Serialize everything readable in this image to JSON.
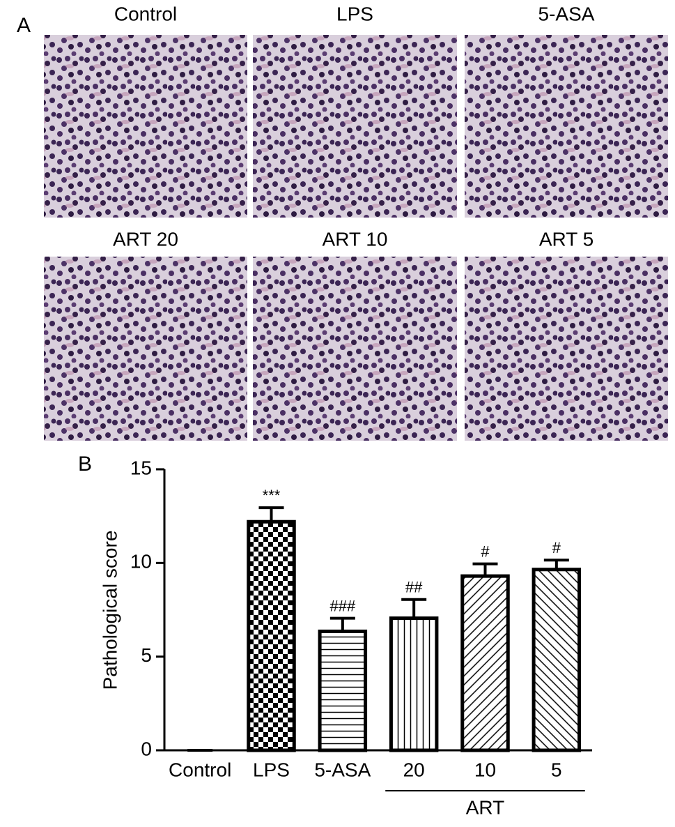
{
  "panel_a": {
    "label": "A",
    "images": [
      "Control",
      "LPS",
      "5-ASA",
      "ART 20",
      "ART 10",
      "ART 5"
    ]
  },
  "chart_data": {
    "type": "bar",
    "panel_label": "B",
    "ylabel": "Pathological score",
    "categories": [
      "Control",
      "LPS",
      "5-ASA",
      "20",
      "10",
      "5"
    ],
    "values": [
      0,
      12.2,
      6.35,
      7.05,
      9.3,
      9.65
    ],
    "errors": [
      0,
      0.75,
      0.7,
      1.0,
      0.65,
      0.5
    ],
    "annotations": [
      null,
      "***",
      "###",
      "##",
      "#",
      "#"
    ],
    "patterns": [
      "none",
      "checker",
      "horizontal",
      "vertical",
      "diagonal-up",
      "diagonal-down"
    ],
    "color": "#000000",
    "groups": [
      {
        "label": "ART",
        "from": 3,
        "to": 5
      }
    ],
    "ylim": [
      0,
      15
    ],
    "yticks": [
      0,
      5,
      10,
      15
    ],
    "grid": false
  }
}
